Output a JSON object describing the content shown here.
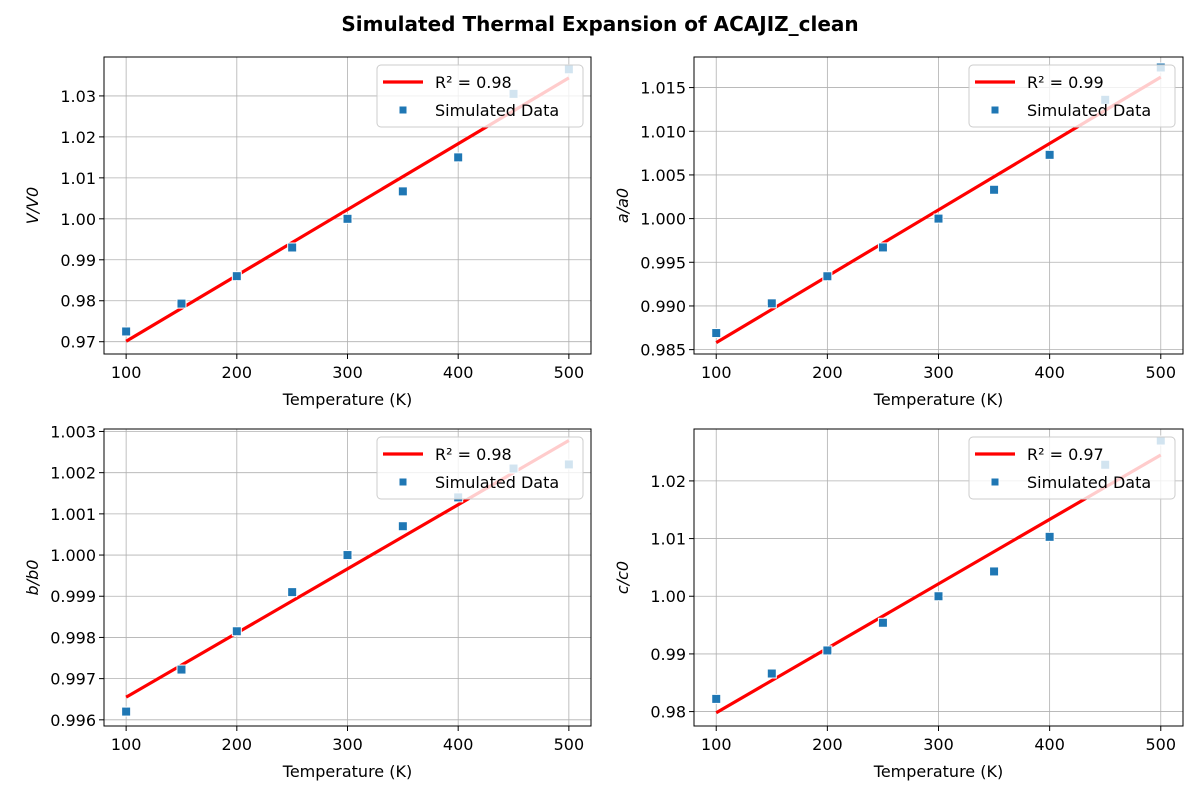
{
  "figure": {
    "title": "Simulated Thermal Expansion of ACAJIZ_clean"
  },
  "colors": {
    "fit_line": "#ff0000",
    "points": "#1f77b4",
    "grid": "#b0b0b0",
    "axes": "#000000"
  },
  "chart_data": [
    {
      "type": "scatter",
      "xlabel": "Temperature (K)",
      "ylabel": "V/V0",
      "xlim": [
        80,
        520
      ],
      "ylim": [
        0.967,
        1.0395
      ],
      "xticks": [
        100,
        200,
        300,
        400,
        500
      ],
      "yticks": [
        0.97,
        0.98,
        0.99,
        1.0,
        1.01,
        1.02,
        1.03
      ],
      "ytick_labels": [
        "0.97",
        "0.98",
        "0.99",
        "1.00",
        "1.01",
        "1.02",
        "1.03"
      ],
      "grid": true,
      "legend_position": "top-right",
      "legend": {
        "fit_label": "R² = 0.98",
        "data_label": "Simulated Data"
      },
      "fit_line": {
        "x": [
          100,
          500
        ],
        "y": [
          0.9701,
          1.0344
        ]
      },
      "series": [
        {
          "name": "Simulated Data",
          "x": [
            100,
            150,
            200,
            250,
            300,
            350,
            400,
            450,
            500
          ],
          "y": [
            0.9725,
            0.9793,
            0.986,
            0.993,
            1.0,
            1.0067,
            1.015,
            1.0305,
            1.0365
          ]
        }
      ]
    },
    {
      "type": "scatter",
      "xlabel": "Temperature (K)",
      "ylabel": "a/a0",
      "xlim": [
        80,
        520
      ],
      "ylim": [
        0.9845,
        1.0185
      ],
      "xticks": [
        100,
        200,
        300,
        400,
        500
      ],
      "yticks": [
        0.985,
        0.99,
        0.995,
        1.0,
        1.005,
        1.01,
        1.015
      ],
      "ytick_labels": [
        "0.985",
        "0.990",
        "0.995",
        "1.000",
        "1.005",
        "1.010",
        "1.015"
      ],
      "grid": true,
      "legend_position": "top-right",
      "legend": {
        "fit_label": "R² = 0.99",
        "data_label": "Simulated Data"
      },
      "fit_line": {
        "x": [
          100,
          500
        ],
        "y": [
          0.9858,
          1.0162
        ]
      },
      "series": [
        {
          "name": "Simulated Data",
          "x": [
            100,
            150,
            200,
            250,
            300,
            350,
            400,
            450,
            500
          ],
          "y": [
            0.9869,
            0.9903,
            0.9934,
            0.9967,
            1.0,
            1.0033,
            1.0073,
            1.0136,
            1.0173
          ]
        }
      ]
    },
    {
      "type": "scatter",
      "xlabel": "Temperature (K)",
      "ylabel": "b/b0",
      "xlim": [
        80,
        520
      ],
      "ylim": [
        0.99585,
        1.00306
      ],
      "xticks": [
        100,
        200,
        300,
        400,
        500
      ],
      "yticks": [
        0.996,
        0.997,
        0.998,
        0.999,
        1.0,
        1.001,
        1.002,
        1.003
      ],
      "ytick_labels": [
        "0.996",
        "0.997",
        "0.998",
        "0.999",
        "1.000",
        "1.001",
        "1.002",
        "1.003"
      ],
      "grid": true,
      "legend_position": "top-right",
      "legend": {
        "fit_label": "R² = 0.98",
        "data_label": "Simulated Data"
      },
      "fit_line": {
        "x": [
          100,
          500
        ],
        "y": [
          0.99655,
          1.00278
        ]
      },
      "series": [
        {
          "name": "Simulated Data",
          "x": [
            100,
            150,
            200,
            250,
            300,
            350,
            400,
            450,
            500
          ],
          "y": [
            0.9962,
            0.99722,
            0.99815,
            0.9991,
            1.0,
            1.0007,
            1.0014,
            1.0021,
            1.0022
          ]
        }
      ]
    },
    {
      "type": "scatter",
      "xlabel": "Temperature (K)",
      "ylabel": "c/c0",
      "xlim": [
        80,
        520
      ],
      "ylim": [
        0.9775,
        1.029
      ],
      "xticks": [
        100,
        200,
        300,
        400,
        500
      ],
      "yticks": [
        0.98,
        0.99,
        1.0,
        1.01,
        1.02
      ],
      "ytick_labels": [
        "0.98",
        "0.99",
        "1.00",
        "1.01",
        "1.02"
      ],
      "grid": true,
      "legend_position": "top-right",
      "legend": {
        "fit_label": "R² = 0.97",
        "data_label": "Simulated Data"
      },
      "fit_line": {
        "x": [
          100,
          500
        ],
        "y": [
          0.9798,
          1.0245
        ]
      },
      "series": [
        {
          "name": "Simulated Data",
          "x": [
            100,
            150,
            200,
            250,
            300,
            350,
            400,
            450,
            500
          ],
          "y": [
            0.9822,
            0.9866,
            0.9906,
            0.9954,
            1.0,
            1.0043,
            1.0103,
            1.0228,
            1.027
          ]
        }
      ]
    }
  ]
}
